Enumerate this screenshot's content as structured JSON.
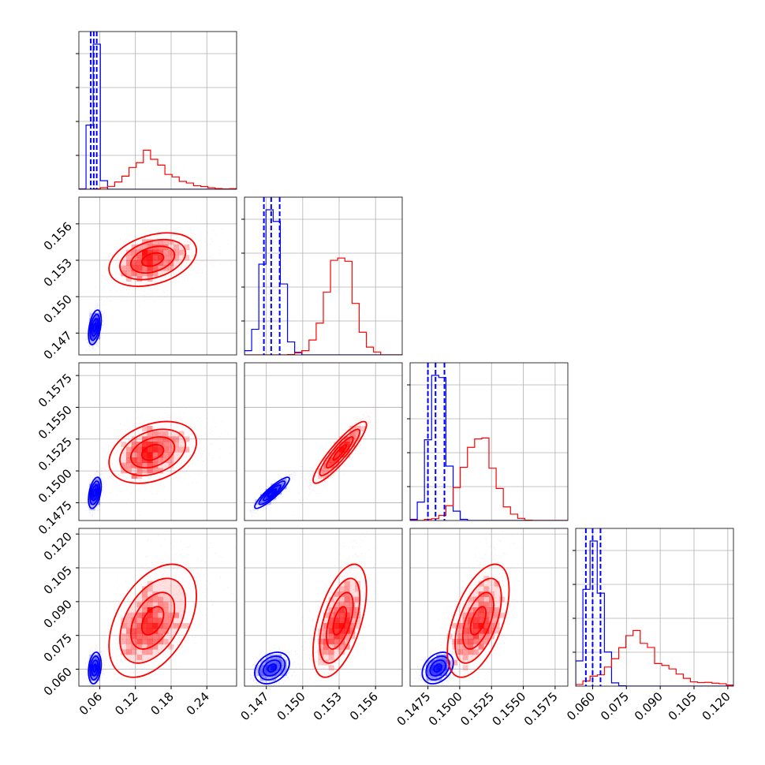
{
  "chart_data": {
    "type": "corner",
    "title": "",
    "parameters": [
      "",
      "",
      "",
      ""
    ],
    "colors": {
      "series_a": "#0000ff",
      "series_b": "#ff0000",
      "grid": "#b0b0b0"
    },
    "grid": true,
    "legend": "none",
    "axes": [
      {
        "range": [
          0.025,
          0.29
        ],
        "ticks": [
          0.06,
          0.12,
          0.18,
          0.24
        ],
        "tick_labels": [
          "0.06",
          "0.12",
          "0.18",
          "0.24"
        ]
      },
      {
        "range": [
          0.1452,
          0.1582
        ],
        "ticks": [
          0.147,
          0.15,
          0.153,
          0.156
        ],
        "tick_labels": [
          "0.147",
          "0.150",
          "0.153",
          "0.156"
        ]
      },
      {
        "range": [
          0.1461,
          0.1585
        ],
        "ticks": [
          0.1475,
          0.15,
          0.1525,
          0.155,
          0.1575
        ],
        "tick_labels": [
          "0.1475",
          "0.1500",
          "0.1525",
          "0.1550",
          "0.1575"
        ]
      },
      {
        "range": [
          0.0525,
          0.1225
        ],
        "ticks": [
          0.06,
          0.075,
          0.09,
          0.105,
          0.12
        ],
        "tick_labels": [
          "0.060",
          "0.075",
          "0.090",
          "0.105",
          "0.120"
        ]
      }
    ],
    "series": [
      {
        "name": "",
        "color": "#0000ff",
        "mean": [
          0.052,
          0.1475,
          0.1483,
          0.0605
        ],
        "sd": [
          0.0055,
          0.0007,
          0.0006,
          0.0035
        ],
        "corr": [
          [
            1.0,
            0.4,
            0.4,
            0.2
          ],
          [
            0.4,
            1.0,
            0.9,
            0.3
          ],
          [
            0.4,
            0.9,
            1.0,
            0.3
          ],
          [
            0.2,
            0.3,
            0.3,
            1.0
          ]
        ],
        "quantiles": [
          [
            0.045,
            0.05,
            0.055
          ],
          [
            0.1468,
            0.1474,
            0.1481
          ],
          [
            0.1475,
            0.1481,
            0.1488
          ],
          [
            0.057,
            0.06,
            0.0635
          ]
        ]
      },
      {
        "name": "",
        "color": "#ff0000",
        "mean": [
          0.145,
          0.1531,
          0.1515,
          0.08
        ],
        "sd": [
          0.028,
          0.0011,
          0.0012,
          0.0095
        ],
        "corr": [
          [
            1.0,
            0.35,
            0.35,
            0.45
          ],
          [
            0.35,
            1.0,
            0.9,
            0.55
          ],
          [
            0.35,
            0.9,
            1.0,
            0.55
          ],
          [
            0.45,
            0.55,
            0.55,
            1.0
          ]
        ],
        "quantiles": []
      }
    ]
  }
}
